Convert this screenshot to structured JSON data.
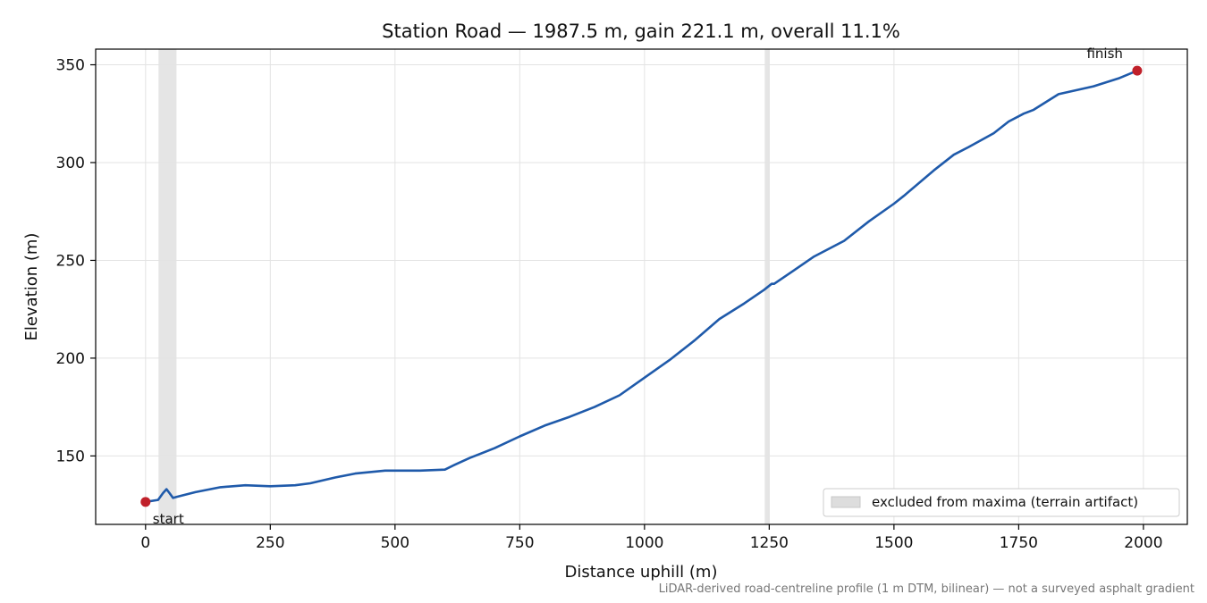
{
  "chart_data": {
    "type": "line",
    "title": "Station Road — 1987.5 m, gain 221.1 m, overall 11.1%",
    "xlabel": "Distance uphill (m)",
    "ylabel": "Elevation (m)",
    "xlim": [
      -100,
      2088
    ],
    "ylim": [
      115,
      358
    ],
    "xticks": [
      0,
      250,
      500,
      750,
      1000,
      1250,
      1500,
      1750,
      2000
    ],
    "yticks": [
      150,
      200,
      250,
      300,
      350
    ],
    "grid": true,
    "legend_position": "lower-right",
    "series": [
      {
        "color": "#1f5aaa",
        "x": [
          0,
          25,
          35,
          42,
          48,
          55,
          62,
          100,
          150,
          200,
          250,
          300,
          330,
          380,
          420,
          480,
          550,
          600,
          620,
          650,
          700,
          750,
          800,
          850,
          900,
          950,
          1000,
          1050,
          1100,
          1150,
          1200,
          1240,
          1255,
          1260,
          1300,
          1340,
          1400,
          1450,
          1500,
          1520,
          1580,
          1620,
          1650,
          1700,
          1730,
          1760,
          1780,
          1830,
          1900,
          1950,
          1987.5
        ],
        "y": [
          126.5,
          127.5,
          131,
          133,
          131,
          128.5,
          129,
          131.5,
          134,
          135,
          134.5,
          135,
          136,
          139,
          141,
          142.5,
          142.5,
          143,
          145.5,
          149,
          154,
          160,
          165.5,
          170,
          175,
          181,
          190,
          199,
          209,
          220,
          228,
          235,
          238,
          238,
          245,
          252,
          260,
          270,
          279,
          283,
          296,
          304,
          308,
          315,
          321,
          325,
          327,
          335,
          339,
          343,
          347
        ]
      }
    ],
    "excluded_regions": [
      [
        26,
        62
      ],
      [
        1241,
        1251
      ]
    ],
    "legend_entries": [
      "excluded from maxima (terrain artifact)"
    ],
    "points": [
      {
        "label": "start",
        "x": 0,
        "y": 126.5,
        "color": "#c0202a"
      },
      {
        "label": "finish",
        "x": 1987.5,
        "y": 347,
        "color": "#c0202a"
      }
    ],
    "footnote": "LiDAR-derived road-centreline profile (1 m DTM, bilinear) — not a surveyed asphalt gradient"
  }
}
